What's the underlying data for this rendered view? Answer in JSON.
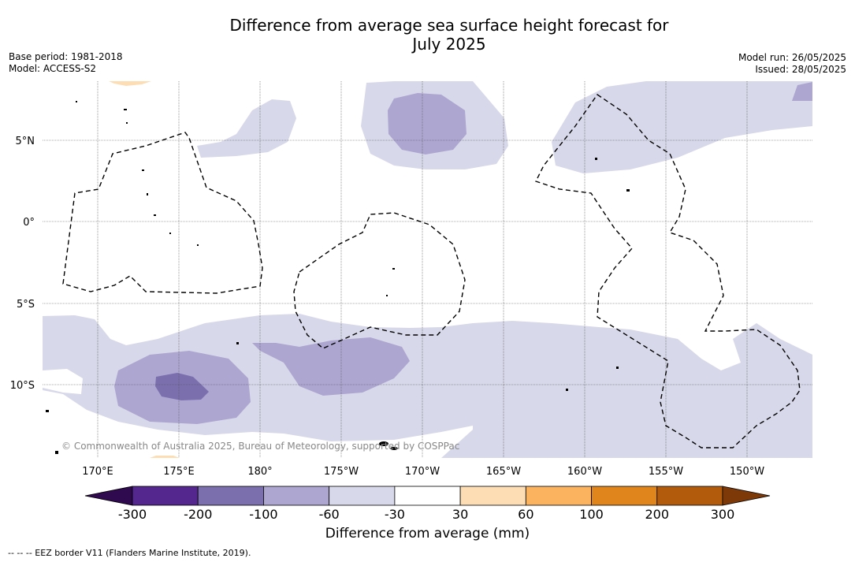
{
  "title_line1": "Difference from average sea surface height forecast for",
  "title_line2": "July 2025",
  "base_period": "Base period: 1981-2018",
  "model": "Model: ACCESS-S2",
  "model_run": "Model run: 26/05/2025",
  "issued": "Issued: 28/05/2025",
  "copyright": "© Commonwealth of Australia 2025, Bureau of Meteorology, supported by COSPPac",
  "lat_labels": [
    "5°N",
    "0°",
    "5°S",
    "10°S"
  ],
  "lon_labels": [
    "170°E",
    "175°E",
    "180°",
    "175°W",
    "170°W",
    "165°W",
    "160°W",
    "155°W",
    "150°W"
  ],
  "colorbar": {
    "title": "Difference from average (mm)",
    "ticks": [
      "-300",
      "-200",
      "-100",
      "-60",
      "-30",
      "30",
      "60",
      "100",
      "200",
      "300"
    ],
    "colors": [
      "#2f0a4f",
      "#54278f",
      "#7b6fae",
      "#ada6d0",
      "#d7d8e9",
      "#ffffff",
      "#fdddb3",
      "#fbb360",
      "#e0841c",
      "#b25b0d",
      "#7d3a08"
    ]
  },
  "footnote": "--  --  -- EEZ border V11 (Flanders Marine Institute, 2019)."
}
